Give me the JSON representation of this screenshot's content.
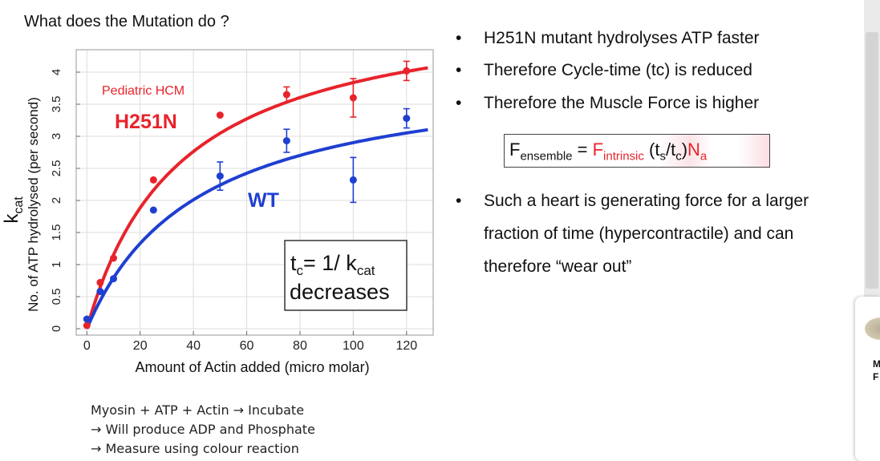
{
  "slide": {
    "title": "What does the Mutation do ?",
    "method_notes": [
      "Myosin + ATP + Actin → Incubate",
      "→ Will produce ADP and Phosphate",
      "→ Measure using colour reaction"
    ]
  },
  "chart_data": {
    "type": "scatter",
    "xlabel": "Amount of Actin added (micro molar)",
    "ylabel_symbol": "k",
    "ylabel_symbol_sub": "cat",
    "ylabel": "No. of ATP hydrolysed (per second)",
    "xlim": [
      -4,
      130
    ],
    "ylim": [
      -0.1,
      4.35
    ],
    "x_ticks": [
      0,
      20,
      40,
      60,
      80,
      100,
      120
    ],
    "y_ticks": [
      0,
      0.5,
      1,
      1.5,
      2,
      2.5,
      3,
      3.5,
      4
    ],
    "x_tick_labels": [
      "0",
      "20",
      "40",
      "60",
      "80",
      "100",
      "120"
    ],
    "y_tick_labels": [
      "0",
      "0.5",
      "1",
      "1.5",
      "2",
      "2.5",
      "3",
      "3.5",
      "4"
    ],
    "grid": true,
    "series": [
      {
        "name": "H251N",
        "color": "#e8232b",
        "points": [
          {
            "x": 0,
            "y": 0.05
          },
          {
            "x": 5,
            "y": 0.72
          },
          {
            "x": 10,
            "y": 1.1
          },
          {
            "x": 25,
            "y": 2.32
          },
          {
            "x": 50,
            "y": 3.33
          },
          {
            "x": 75,
            "y": 3.65,
            "err": 0.12
          },
          {
            "x": 100,
            "y": 3.6,
            "err": 0.3
          },
          {
            "x": 120,
            "y": 4.02,
            "err": 0.15
          }
        ],
        "fit": {
          "vmax": 5.18,
          "km": 35
        }
      },
      {
        "name": "WT",
        "color": "#1f3fd1",
        "points": [
          {
            "x": 0,
            "y": 0.15
          },
          {
            "x": 5,
            "y": 0.58
          },
          {
            "x": 10,
            "y": 0.78
          },
          {
            "x": 25,
            "y": 1.85
          },
          {
            "x": 50,
            "y": 2.38,
            "err": 0.22
          },
          {
            "x": 75,
            "y": 2.93,
            "err": 0.18
          },
          {
            "x": 100,
            "y": 2.32,
            "err": 0.35
          },
          {
            "x": 120,
            "y": 3.28,
            "err": 0.15
          }
        ],
        "fit": {
          "vmax": 4.12,
          "km": 42
        }
      }
    ],
    "annotations": {
      "mutant_context": "Pediatric HCM",
      "mutant_label": "H251N",
      "wt_label": "WT",
      "box_line1_lhs": "t",
      "box_line1_lhs_sub": "c",
      "box_line1_rhs": "= 1/ k",
      "box_line1_rhs_sub": "cat",
      "box_line2": "decreases"
    }
  },
  "bullets": {
    "items": [
      "H251N mutant hydrolyses ATP faster",
      "Therefore Cycle-time (tc) is reduced",
      "Therefore the Muscle Force is higher"
    ],
    "formula": {
      "f1": "F",
      "f1_sub": "ensemble",
      "eq": " = ",
      "f2": "F",
      "f2_sub": "intrinsic",
      "paren": " (t",
      "ts_sub": "s",
      "slash": "/t",
      "tc_sub": "c",
      "close": ")",
      "n": "N",
      "n_sub": "a"
    },
    "last_item_lines": [
      "Such a heart is generating force for a larger",
      "fraction of time (hypercontractile) and can",
      "therefore “wear out”"
    ],
    "bullet_glyph": "•"
  },
  "sidebar": {
    "next_thumb_lines": [
      "M",
      "F"
    ]
  },
  "colors": {
    "red": "#e8232b",
    "blue": "#1f3fd1"
  }
}
